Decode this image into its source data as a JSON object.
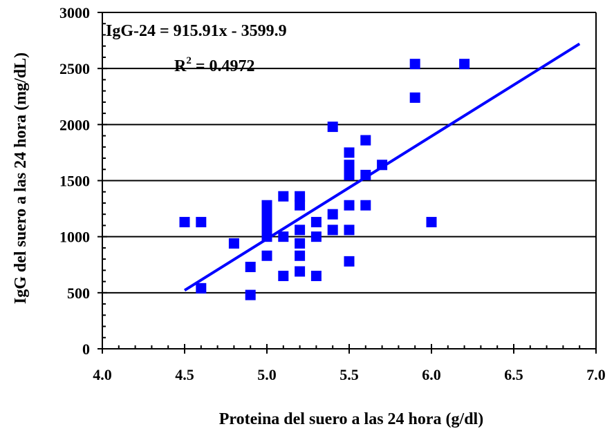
{
  "chart_data": {
    "type": "scatter",
    "xlabel": "Proteina del suero a las 24 hora (g/dl)",
    "ylabel": "IgG del suero a las 24 hora (mg/dL)",
    "xlim": [
      4.0,
      7.0
    ],
    "ylim": [
      0,
      3000
    ],
    "x_ticks": [
      "4.0",
      "4.5",
      "5.0",
      "5.5",
      "6.0",
      "6.5",
      "7.0"
    ],
    "y_ticks": [
      "0",
      "500",
      "1000",
      "1500",
      "2000",
      "2500",
      "3000"
    ],
    "grid": "horizontal",
    "marker_color": "#0000FF",
    "line_color": "#0000FF",
    "series": [
      {
        "marker": "square",
        "points": [
          [
            4.5,
            1130
          ],
          [
            4.6,
            1130
          ],
          [
            4.6,
            540
          ],
          [
            4.8,
            940
          ],
          [
            4.9,
            730
          ],
          [
            4.9,
            480
          ],
          [
            5.0,
            1280
          ],
          [
            5.0,
            1200
          ],
          [
            5.0,
            1150
          ],
          [
            5.0,
            1100
          ],
          [
            5.0,
            1050
          ],
          [
            5.0,
            1000
          ],
          [
            5.0,
            830
          ],
          [
            5.1,
            1360
          ],
          [
            5.1,
            1000
          ],
          [
            5.1,
            650
          ],
          [
            5.2,
            1360
          ],
          [
            5.2,
            1280
          ],
          [
            5.2,
            1060
          ],
          [
            5.2,
            940
          ],
          [
            5.2,
            830
          ],
          [
            5.2,
            690
          ],
          [
            5.3,
            1130
          ],
          [
            5.3,
            1000
          ],
          [
            5.3,
            650
          ],
          [
            5.4,
            1980
          ],
          [
            5.4,
            1200
          ],
          [
            5.4,
            1060
          ],
          [
            5.5,
            1750
          ],
          [
            5.5,
            1640
          ],
          [
            5.5,
            1550
          ],
          [
            5.5,
            1280
          ],
          [
            5.5,
            1060
          ],
          [
            5.5,
            780
          ],
          [
            5.6,
            1860
          ],
          [
            5.6,
            1550
          ],
          [
            5.6,
            1280
          ],
          [
            5.7,
            1640
          ],
          [
            5.9,
            2540
          ],
          [
            5.9,
            2240
          ],
          [
            6.0,
            1130
          ],
          [
            6.2,
            2540
          ]
        ]
      }
    ],
    "trendline": {
      "type": "linear",
      "slope": 915.91,
      "intercept": -3599.9,
      "x_range": [
        4.5,
        6.9
      ],
      "equation_label": "IgG-24 = 915.91x - 3599.9",
      "r2_prefix": "R",
      "r2_exp": "2",
      "r2_value": " = 0.4972"
    }
  }
}
